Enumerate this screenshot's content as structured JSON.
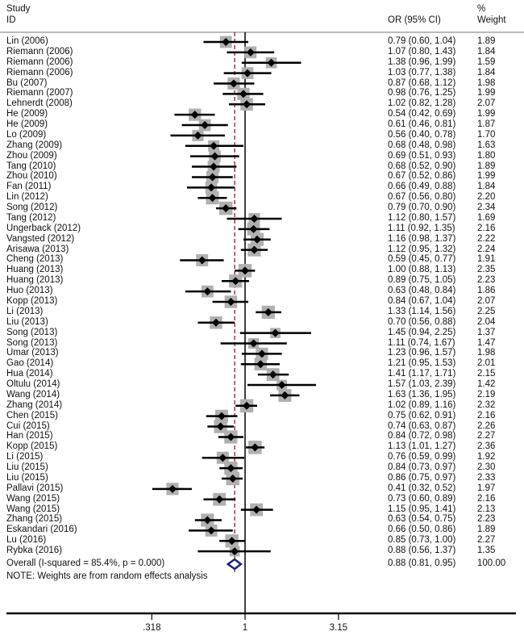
{
  "chart_data": {
    "type": "forest",
    "scale": "log",
    "headers": {
      "study_line1": "Study",
      "study_line2": "ID",
      "ci": "OR (95% CI)",
      "weight_line1": "%",
      "weight_line2": "Weight"
    },
    "xticks": [
      {
        "value": 0.318,
        "label": ".318"
      },
      {
        "value": 1,
        "label": "1"
      },
      {
        "value": 3.15,
        "label": "3.15"
      }
    ],
    "xlim": [
      0.2,
      4.5
    ],
    "studies": [
      {
        "id": "Lin (2006)",
        "or": 0.79,
        "lo": 0.6,
        "hi": 1.04,
        "ci": "0.79 (0.60, 1.04)",
        "weight": "1.89"
      },
      {
        "id": "Riemann (2006)",
        "or": 1.07,
        "lo": 0.8,
        "hi": 1.43,
        "ci": "1.07 (0.80, 1.43)",
        "weight": "1.84"
      },
      {
        "id": "Riemann (2006)",
        "or": 1.38,
        "lo": 0.96,
        "hi": 1.99,
        "ci": "1.38 (0.96, 1.99)",
        "weight": "1.59"
      },
      {
        "id": "Riemann (2006)",
        "or": 1.03,
        "lo": 0.77,
        "hi": 1.38,
        "ci": "1.03 (0.77, 1.38)",
        "weight": "1.84"
      },
      {
        "id": "Bu (2007)",
        "or": 0.87,
        "lo": 0.68,
        "hi": 1.12,
        "ci": "0.87 (0.68, 1.12)",
        "weight": "1.98"
      },
      {
        "id": "Riemann (2007)",
        "or": 0.98,
        "lo": 0.76,
        "hi": 1.25,
        "ci": "0.98 (0.76, 1.25)",
        "weight": "1.99"
      },
      {
        "id": "Lehnerdt (2008)",
        "or": 1.02,
        "lo": 0.82,
        "hi": 1.28,
        "ci": "1.02 (0.82, 1.28)",
        "weight": "2.07"
      },
      {
        "id": "He (2009)",
        "or": 0.54,
        "lo": 0.42,
        "hi": 0.69,
        "ci": "0.54 (0.42, 0.69)",
        "weight": "1.99"
      },
      {
        "id": "He (2009)",
        "or": 0.61,
        "lo": 0.46,
        "hi": 0.81,
        "ci": "0.61 (0.46, 0.81)",
        "weight": "1.87"
      },
      {
        "id": "Lo (2009)",
        "or": 0.56,
        "lo": 0.4,
        "hi": 0.78,
        "ci": "0.56 (0.40, 0.78)",
        "weight": "1.70"
      },
      {
        "id": "Zhang (2009)",
        "or": 0.68,
        "lo": 0.48,
        "hi": 0.98,
        "ci": "0.68 (0.48, 0.98)",
        "weight": "1.63"
      },
      {
        "id": "Zhou (2009)",
        "or": 0.69,
        "lo": 0.51,
        "hi": 0.93,
        "ci": "0.69 (0.51, 0.93)",
        "weight": "1.80"
      },
      {
        "id": "Tang (2010)",
        "or": 0.68,
        "lo": 0.52,
        "hi": 0.9,
        "ci": "0.68 (0.52, 0.90)",
        "weight": "1.89"
      },
      {
        "id": "Zhou (2010)",
        "or": 0.67,
        "lo": 0.52,
        "hi": 0.86,
        "ci": "0.67 (0.52, 0.86)",
        "weight": "1.99"
      },
      {
        "id": "Fan (2011)",
        "or": 0.66,
        "lo": 0.49,
        "hi": 0.88,
        "ci": "0.66 (0.49, 0.88)",
        "weight": "1.84"
      },
      {
        "id": "Lin (2012)",
        "or": 0.67,
        "lo": 0.56,
        "hi": 0.8,
        "ci": "0.67 (0.56, 0.80)",
        "weight": "2.20"
      },
      {
        "id": "Song (2012)",
        "or": 0.79,
        "lo": 0.7,
        "hi": 0.9,
        "ci": "0.79 (0.70, 0.90)",
        "weight": "2.34"
      },
      {
        "id": "Tang (2012)",
        "or": 1.12,
        "lo": 0.8,
        "hi": 1.57,
        "ci": "1.12 (0.80, 1.57)",
        "weight": "1.69"
      },
      {
        "id": "Ungerback (2012)",
        "or": 1.11,
        "lo": 0.92,
        "hi": 1.35,
        "ci": "1.11 (0.92, 1.35)",
        "weight": "2.16"
      },
      {
        "id": "Vangsted (2012)",
        "or": 1.16,
        "lo": 0.98,
        "hi": 1.37,
        "ci": "1.16 (0.98, 1.37)",
        "weight": "2.22"
      },
      {
        "id": "Arisawa (2013)",
        "or": 1.12,
        "lo": 0.95,
        "hi": 1.32,
        "ci": "1.12 (0.95, 1.32)",
        "weight": "2.24"
      },
      {
        "id": "Cheng (2013)",
        "or": 0.59,
        "lo": 0.45,
        "hi": 0.77,
        "ci": "0.59 (0.45, 0.77)",
        "weight": "1.91"
      },
      {
        "id": "Huang (2013)",
        "or": 1.0,
        "lo": 0.88,
        "hi": 1.13,
        "ci": "1.00 (0.88, 1.13)",
        "weight": "2.35"
      },
      {
        "id": "Huang (2013)",
        "or": 0.89,
        "lo": 0.75,
        "hi": 1.05,
        "ci": "0.89 (0.75, 1.05)",
        "weight": "2.23"
      },
      {
        "id": "Huo (2013)",
        "or": 0.63,
        "lo": 0.48,
        "hi": 0.84,
        "ci": "0.63 (0.48, 0.84)",
        "weight": "1.86"
      },
      {
        "id": "Kopp (2013)",
        "or": 0.84,
        "lo": 0.67,
        "hi": 1.04,
        "ci": "0.84 (0.67, 1.04)",
        "weight": "2.07"
      },
      {
        "id": "Li (2013)",
        "or": 1.33,
        "lo": 1.14,
        "hi": 1.56,
        "ci": "1.33 (1.14, 1.56)",
        "weight": "2.25"
      },
      {
        "id": "Liu (2013)",
        "or": 0.7,
        "lo": 0.56,
        "hi": 0.88,
        "ci": "0.70 (0.56, 0.88)",
        "weight": "2.04"
      },
      {
        "id": "Song (2013)",
        "or": 1.45,
        "lo": 0.94,
        "hi": 2.25,
        "ci": "1.45 (0.94, 2.25)",
        "weight": "1.37"
      },
      {
        "id": "Song (2013)",
        "or": 1.11,
        "lo": 0.74,
        "hi": 1.67,
        "ci": "1.11 (0.74, 1.67)",
        "weight": "1.47"
      },
      {
        "id": "Umar (2013)",
        "or": 1.23,
        "lo": 0.96,
        "hi": 1.57,
        "ci": "1.23 (0.96, 1.57)",
        "weight": "1.98"
      },
      {
        "id": "Gao (2014)",
        "or": 1.21,
        "lo": 0.95,
        "hi": 1.53,
        "ci": "1.21 (0.95, 1.53)",
        "weight": "2.01"
      },
      {
        "id": "Hua (2014)",
        "or": 1.41,
        "lo": 1.17,
        "hi": 1.71,
        "ci": "1.41 (1.17, 1.71)",
        "weight": "2.15"
      },
      {
        "id": "Oltulu (2014)",
        "or": 1.57,
        "lo": 1.03,
        "hi": 2.39,
        "ci": "1.57 (1.03, 2.39)",
        "weight": "1.42"
      },
      {
        "id": "Wang (2014)",
        "or": 1.63,
        "lo": 1.36,
        "hi": 1.95,
        "ci": "1.63 (1.36, 1.95)",
        "weight": "2.19"
      },
      {
        "id": "Zhang (2014)",
        "or": 1.02,
        "lo": 0.89,
        "hi": 1.16,
        "ci": "1.02 (0.89, 1.16)",
        "weight": "2.32"
      },
      {
        "id": "Chen (2015)",
        "or": 0.75,
        "lo": 0.62,
        "hi": 0.91,
        "ci": "0.75 (0.62, 0.91)",
        "weight": "2.16"
      },
      {
        "id": "Cui (2015)",
        "or": 0.74,
        "lo": 0.63,
        "hi": 0.87,
        "ci": "0.74 (0.63, 0.87)",
        "weight": "2.26"
      },
      {
        "id": "Han (2015)",
        "or": 0.84,
        "lo": 0.72,
        "hi": 0.98,
        "ci": "0.84 (0.72, 0.98)",
        "weight": "2.27"
      },
      {
        "id": "Kopp (2015)",
        "or": 1.13,
        "lo": 1.01,
        "hi": 1.27,
        "ci": "1.13 (1.01, 1.27)",
        "weight": "2.36"
      },
      {
        "id": "Li (2015)",
        "or": 0.76,
        "lo": 0.59,
        "hi": 0.99,
        "ci": "0.76 (0.59, 0.99)",
        "weight": "1.92"
      },
      {
        "id": "Liu (2015)",
        "or": 0.84,
        "lo": 0.73,
        "hi": 0.97,
        "ci": "0.84 (0.73, 0.97)",
        "weight": "2.30"
      },
      {
        "id": "Liu (2015)",
        "or": 0.86,
        "lo": 0.75,
        "hi": 0.97,
        "ci": "0.86 (0.75, 0.97)",
        "weight": "2.33"
      },
      {
        "id": "Pallavi (2015)",
        "or": 0.41,
        "lo": 0.32,
        "hi": 0.52,
        "ci": "0.41 (0.32, 0.52)",
        "weight": "1.97"
      },
      {
        "id": "Wang (2015)",
        "or": 0.73,
        "lo": 0.6,
        "hi": 0.89,
        "ci": "0.73 (0.60, 0.89)",
        "weight": "2.16"
      },
      {
        "id": "Wang (2015)",
        "or": 1.15,
        "lo": 0.95,
        "hi": 1.41,
        "ci": "1.15 (0.95, 1.41)",
        "weight": "2.13"
      },
      {
        "id": "Zhang (2015)",
        "or": 0.63,
        "lo": 0.54,
        "hi": 0.75,
        "ci": "0.63 (0.54, 0.75)",
        "weight": "2.23"
      },
      {
        "id": "Eskandari (2016)",
        "or": 0.66,
        "lo": 0.5,
        "hi": 0.86,
        "ci": "0.66 (0.50, 0.86)",
        "weight": "1.89"
      },
      {
        "id": "Lu (2016)",
        "or": 0.85,
        "lo": 0.73,
        "hi": 1.0,
        "ci": "0.85 (0.73, 1.00)",
        "weight": "2.27"
      },
      {
        "id": "Rybka (2016)",
        "or": 0.88,
        "lo": 0.56,
        "hi": 1.37,
        "ci": "0.88 (0.56, 1.37)",
        "weight": "1.35"
      }
    ],
    "overall": {
      "label": "Overall  (I-squared = 85.4%, p = 0.000)",
      "or": 0.88,
      "lo": 0.81,
      "hi": 0.95,
      "ci": "0.88 (0.81, 0.95)",
      "weight": "100.00"
    },
    "note": "NOTE: Weights are from random effects analysis",
    "colors": {
      "square": "#b0b0b0",
      "point": "#000000",
      "diamond": "#1a237e",
      "pooled_line": "#8b1a2b"
    }
  }
}
